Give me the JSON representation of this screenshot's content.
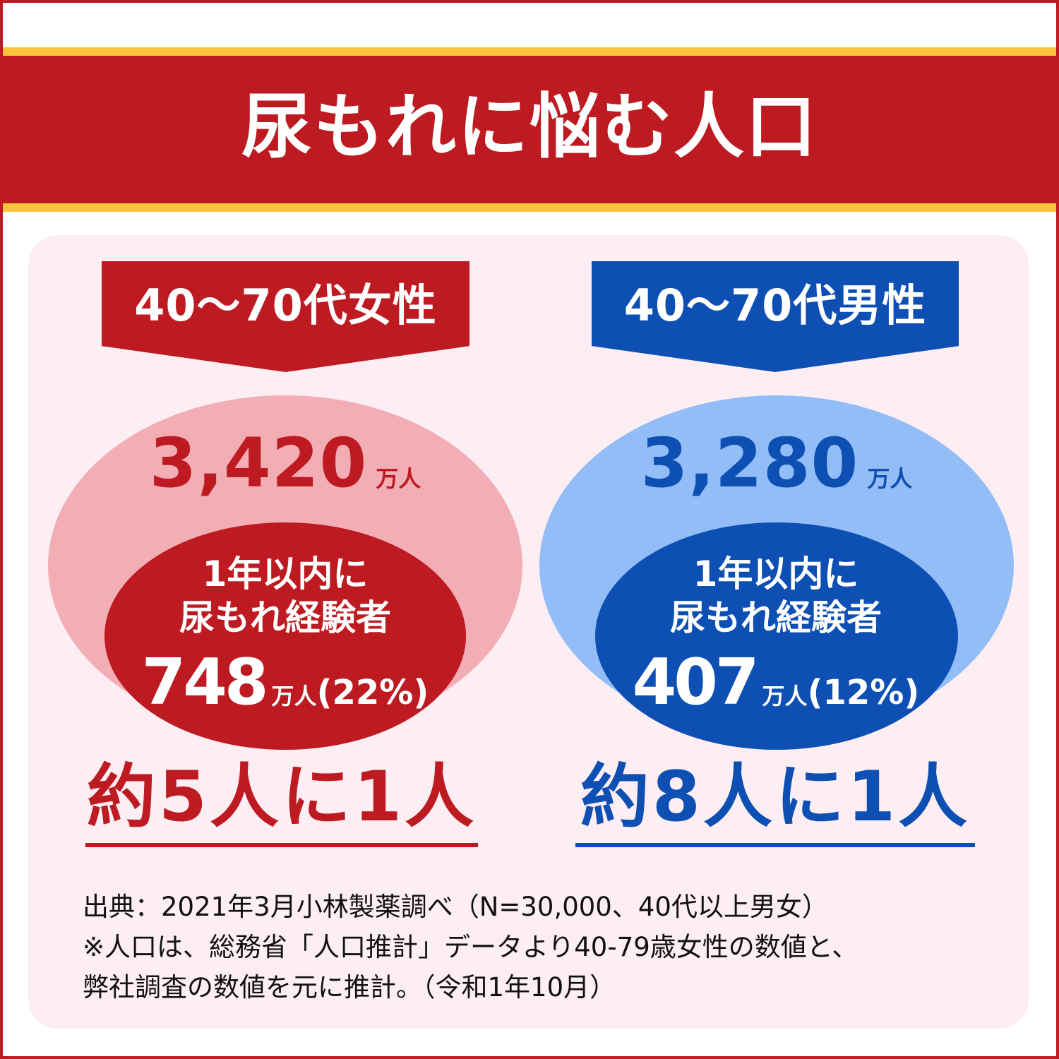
{
  "title": "尿もれに悩む人口",
  "colors": {
    "red": "#be1a21",
    "light_red": "#f2aeb4",
    "blue": "#0d4fb3",
    "light_blue": "#93bdf6",
    "yellow": "#fcc33d",
    "panel_bg": "#fdeef4"
  },
  "women": {
    "label": "40〜70代女性",
    "total_value": "3,420",
    "total_unit": "万人",
    "inner_line1": "1年以内に",
    "inner_line2": "尿もれ経験者",
    "count_value": "748",
    "count_unit": "万人",
    "count_pct": "(22%)",
    "ratio": "約5人に1人"
  },
  "men": {
    "label": "40〜70代男性",
    "total_value": "3,280",
    "total_unit": "万人",
    "inner_line1": "1年以内に",
    "inner_line2": "尿もれ経験者",
    "count_value": "407",
    "count_unit": "万人",
    "count_pct": "(12%)",
    "ratio": "約8人に1人"
  },
  "source": {
    "line1": "出典：2021年3月小林製薬調べ（N=30,000、40代以上男女）",
    "line2": "※人口は、総務省「人口推計」データより40-79歳女性の数値と、",
    "line3": "弊社調査の数値を元に推計。（令和1年10月）"
  }
}
